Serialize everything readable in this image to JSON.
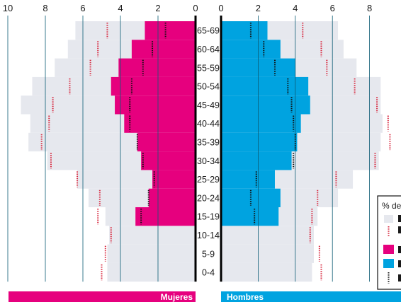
{
  "colors": {
    "mujeres": "#e6007e",
    "hombres": "#00a3e0",
    "background_pyramid": "#e6e8ee",
    "dotted_red": "#d7263d",
    "dotted_black": "#111111",
    "gridline": "#0a5a73"
  },
  "chart_data": {
    "type": "bar",
    "orientation": "horizontal",
    "layout": "population-pyramid",
    "x_ticks_left": [
      "10",
      "8",
      "6",
      "4",
      "2",
      "0"
    ],
    "x_ticks_right": [
      "0",
      "2",
      "4",
      "6",
      "8"
    ],
    "xlim": [
      0,
      10
    ],
    "categories": [
      "0-4",
      "5-9",
      "10-14",
      "15-19",
      "20-24",
      "25-29",
      "30-34",
      "35-39",
      "40-44",
      "45-49",
      "50-54",
      "55-59",
      "60-64",
      "65-69"
    ],
    "panels": [
      {
        "side": "left",
        "label": "Mujeres"
      },
      {
        "side": "right",
        "label": "Hombres"
      }
    ],
    "series": [
      {
        "side": "left",
        "style": "background",
        "color": "#e6e8ee",
        "values": [
          4.7,
          4.7,
          4.6,
          4.8,
          5.7,
          6.3,
          7.9,
          8.9,
          8.8,
          9.3,
          8.7,
          7.5,
          6.8,
          6.4
        ]
      },
      {
        "side": "left",
        "style": "bar",
        "color": "#e6007e",
        "values": [
          0,
          0,
          0,
          3.2,
          2.5,
          2.3,
          2.9,
          3.1,
          3.8,
          4.3,
          4.5,
          4.1,
          3.4,
          2.7
        ]
      },
      {
        "side": "left",
        "style": "dotted",
        "color": "#d7263d",
        "values": [
          5.0,
          4.8,
          4.5,
          5.2,
          5.1,
          6.3,
          7.7,
          8.2,
          7.8,
          7.6,
          6.7,
          5.6,
          5.2,
          4.7
        ]
      },
      {
        "side": "left",
        "style": "dotted",
        "color": "#111111",
        "values": [
          null,
          null,
          null,
          2.9,
          2.5,
          2.2,
          2.8,
          3.1,
          3.5,
          3.5,
          3.4,
          2.8,
          2.3,
          1.6
        ]
      },
      {
        "side": "right",
        "style": "background",
        "color": "#e6e8ee",
        "values": [
          4.9,
          5.0,
          5.0,
          5.2,
          6.3,
          7.1,
          8.5,
          8.6,
          8.7,
          8.6,
          8.6,
          7.3,
          6.6,
          6.3
        ]
      },
      {
        "side": "right",
        "style": "bar",
        "color": "#00a3e0",
        "values": [
          0,
          0,
          0,
          3.1,
          3.2,
          2.9,
          3.8,
          4.1,
          4.3,
          4.8,
          4.7,
          4.0,
          3.2,
          2.5
        ]
      },
      {
        "side": "right",
        "style": "dotted",
        "color": "#d7263d",
        "values": [
          5.4,
          5.3,
          4.8,
          4.9,
          5.2,
          6.2,
          8.3,
          9.1,
          9.0,
          8.4,
          7.2,
          5.7,
          5.4,
          4.4
        ]
      },
      {
        "side": "right",
        "style": "dotted",
        "color": "#111111",
        "values": [
          null,
          null,
          null,
          1.8,
          1.6,
          1.9,
          3.9,
          4.0,
          3.9,
          3.8,
          3.6,
          2.9,
          2.3,
          1.6
        ]
      }
    ],
    "legend": {
      "placement": "bottom-right",
      "visible_text": "% de"
    }
  }
}
